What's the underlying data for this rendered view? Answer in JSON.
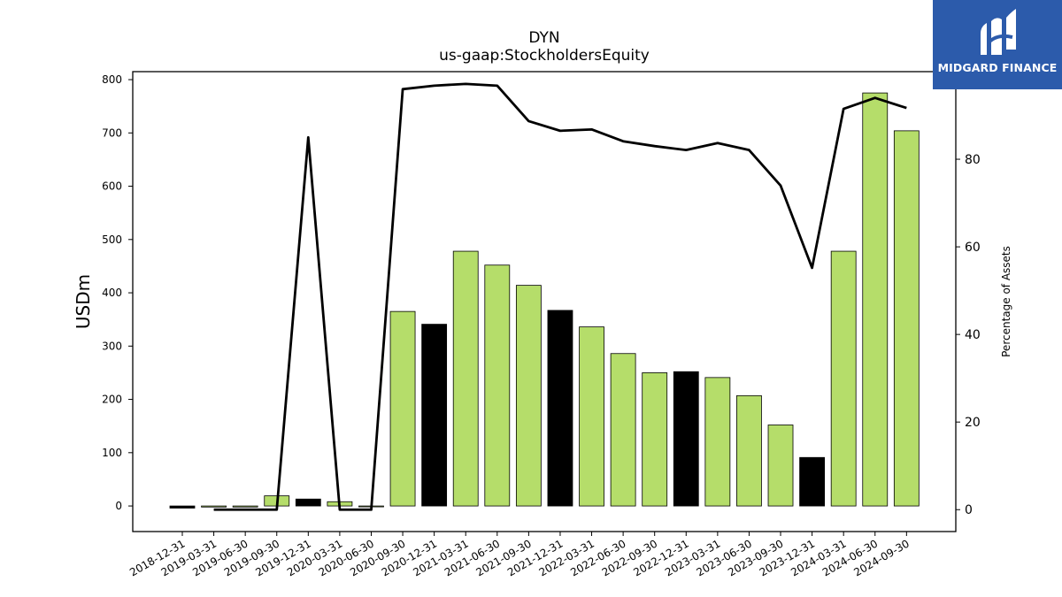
{
  "logo": {
    "text": "MIDGARD FINANCE",
    "icon": "midgard-logo-icon",
    "background": "#2c5bab"
  },
  "chart_data": {
    "type": "bar",
    "title": "DYN",
    "subtitle": "us-gaap:StockholdersEquity",
    "ylabel": "USDm",
    "y2label": "Percentage of Assets",
    "ylim": [
      -48,
      815
    ],
    "y2lim": [
      -5,
      100
    ],
    "yticks": [
      0,
      100,
      200,
      300,
      400,
      500,
      600,
      700,
      800
    ],
    "y2ticks": [
      0,
      20,
      40,
      60,
      80
    ],
    "grid": false,
    "colors": {
      "bar": "#b5dd6a",
      "bar_q4": "#000000",
      "line": "#000000"
    },
    "categories": [
      "2018-12-31",
      "2019-03-31",
      "2019-06-30",
      "2019-09-30",
      "2019-12-31",
      "2020-03-31",
      "2020-06-30",
      "2020-09-30",
      "2020-12-31",
      "2021-03-31",
      "2021-06-30",
      "2021-09-30",
      "2021-12-31",
      "2022-03-31",
      "2022-06-30",
      "2022-09-30",
      "2022-12-31",
      "2023-03-31",
      "2023-06-30",
      "2023-09-30",
      "2023-12-31",
      "2024-03-31",
      "2024-06-30",
      "2024-09-30"
    ],
    "series": [
      {
        "type": "bar",
        "axis": "left",
        "values": [
          -4,
          -2,
          -2,
          19,
          13,
          8,
          -1,
          365,
          341,
          478,
          452,
          414,
          367,
          336,
          286,
          250,
          252,
          241,
          207,
          152,
          91,
          478,
          775,
          704
        ],
        "highlight": [
          true,
          false,
          false,
          false,
          true,
          false,
          false,
          false,
          true,
          false,
          false,
          false,
          true,
          false,
          false,
          false,
          true,
          false,
          false,
          false,
          true,
          false,
          false,
          false
        ]
      },
      {
        "type": "line",
        "axis": "right",
        "values": [
          null,
          0,
          0,
          0,
          85,
          0,
          0,
          96,
          96.8,
          97.2,
          96.8,
          88.7,
          86.5,
          86.8,
          84.1,
          83,
          82.1,
          83.7,
          82.1,
          74,
          55.2,
          91.5,
          94,
          91.7
        ]
      }
    ]
  }
}
